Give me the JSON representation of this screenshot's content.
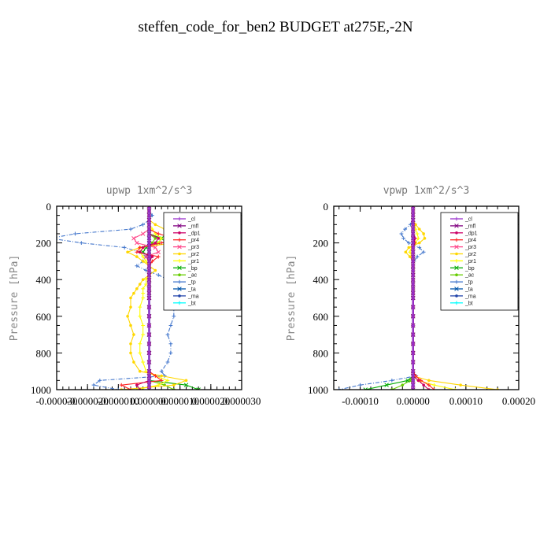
{
  "figure": {
    "title": "steffen_code_for_ben2  BUDGET at275E,-2N"
  },
  "chart_data": [
    {
      "type": "line",
      "title": "upwp   1xm^2/s^3",
      "ylabel": "Pressure [hPa]",
      "xlabel": "",
      "y_inverted": true,
      "ylim": [
        0,
        1000
      ],
      "xlim": [
        -3e-05,
        3e-05
      ],
      "xticks": [
        -3e-05,
        -2e-05,
        -1e-05,
        0,
        1e-05,
        2e-05,
        3e-05
      ],
      "xtick_labels": [
        "-0.000030",
        "-0.000020",
        "-0.000010",
        "0.000000",
        "0.000010",
        "0.000020",
        "0.000030"
      ],
      "yticks": [
        0,
        200,
        400,
        600,
        800,
        1000
      ],
      "ytick_labels": [
        "0",
        "200",
        "400",
        "600",
        "800",
        "1000"
      ],
      "legend": {
        "position": "top-right",
        "entries": [
          "_cl",
          "_mfl",
          "_dp1",
          "_pr4",
          "_pr3",
          "_pr2",
          "_pr1",
          "_bp",
          "_ac",
          "_tp",
          "_ta",
          "_ma",
          "_bt"
        ]
      },
      "grid": false,
      "y": [
        0,
        25,
        50,
        75,
        100,
        125,
        150,
        175,
        200,
        225,
        250,
        275,
        300,
        325,
        350,
        375,
        400,
        425,
        450,
        475,
        500,
        550,
        600,
        650,
        700,
        750,
        800,
        850,
        900,
        925,
        950,
        975,
        1000
      ],
      "series": [
        {
          "name": "_cl",
          "color": "#9933cc",
          "values": [
            0,
            0,
            0,
            0,
            0,
            0,
            0,
            0,
            0,
            0,
            0,
            0,
            0,
            0,
            0,
            0,
            0,
            0,
            0,
            0,
            0,
            0,
            0,
            0,
            0,
            0,
            0,
            0,
            0,
            0,
            0,
            0,
            0
          ]
        },
        {
          "name": "_mfl",
          "color": "#800080",
          "values": [
            0,
            0,
            0,
            0,
            0,
            0,
            0,
            0,
            0,
            0,
            0,
            0,
            0,
            0,
            0,
            0,
            0,
            0,
            0,
            0,
            0,
            0,
            0,
            0,
            0,
            0,
            0,
            0,
            0,
            0,
            0,
            0,
            0
          ]
        },
        {
          "name": "_dp1",
          "color": "#cc0066",
          "values": [
            0,
            0,
            0,
            0,
            0,
            0,
            0,
            3e-06,
            2e-06,
            -2e-06,
            -3e-06,
            1e-06,
            0,
            0,
            0,
            0,
            0,
            0,
            0,
            0,
            0,
            0,
            0,
            0,
            0,
            0,
            0,
            0,
            0,
            0,
            0,
            -4e-06,
            -3e-06
          ]
        },
        {
          "name": "_pr4",
          "color": "#ff2222",
          "values": [
            0,
            0,
            0,
            0,
            0,
            0,
            3e-06,
            8e-06,
            4e-06,
            -3e-06,
            -4e-06,
            3e-06,
            1e-06,
            0,
            0,
            0,
            0,
            0,
            0,
            0,
            0,
            0,
            0,
            0,
            0,
            0,
            0,
            0,
            0,
            2e-06,
            4e-06,
            -9e-06,
            -6e-06
          ]
        },
        {
          "name": "_pr3",
          "color": "#ff4488",
          "values": [
            0,
            0,
            0,
            0,
            0,
            0,
            -2e-06,
            -5e-06,
            -4e-06,
            2e-06,
            3e-06,
            -1e-06,
            0,
            0,
            0,
            0,
            0,
            0,
            0,
            0,
            0,
            0,
            0,
            0,
            0,
            0,
            0,
            0,
            0,
            0,
            0,
            0,
            0
          ]
        },
        {
          "name": "_pr2",
          "color": "#ffd700",
          "values": [
            0,
            0,
            0,
            0,
            2e-06,
            5e-06,
            8e-06,
            1.1e-05,
            8e-06,
            -3e-06,
            -7e-06,
            -4e-06,
            -2e-06,
            0,
            2e-06,
            0,
            -2e-06,
            -3e-06,
            -4e-06,
            -5e-06,
            -6e-06,
            -6e-06,
            -7e-06,
            -6e-06,
            -5e-06,
            -6e-06,
            -6e-06,
            -5e-06,
            -3e-06,
            4e-06,
            1.2e-05,
            8e-06,
            -9e-06
          ]
        },
        {
          "name": "_pr1",
          "color": "#ffff00",
          "values": [
            0,
            0,
            0,
            0,
            0,
            1e-06,
            2e-06,
            4e-06,
            3e-06,
            -2e-06,
            -3e-06,
            -2e-06,
            -1e-06,
            0,
            0,
            0,
            -1e-06,
            -1e-06,
            -2e-06,
            -2e-06,
            -2e-06,
            -3e-06,
            -3e-06,
            -2e-06,
            -2e-06,
            -3e-06,
            -3e-06,
            -2e-06,
            -1e-06,
            2e-06,
            6e-06,
            3e-06,
            -4e-06
          ]
        },
        {
          "name": "_bp",
          "color": "#00aa00",
          "values": [
            0,
            0,
            0,
            0,
            0,
            0,
            0,
            4e-06,
            3e-06,
            -1e-06,
            -2e-06,
            0,
            0,
            0,
            0,
            0,
            0,
            0,
            0,
            0,
            0,
            0,
            0,
            0,
            0,
            0,
            0,
            0,
            0,
            0,
            0,
            1.2e-05,
            1.6e-05
          ]
        },
        {
          "name": "_ac",
          "color": "#66cc00",
          "values": [
            0,
            0,
            0,
            0,
            0,
            0,
            0,
            2e-06,
            1e-06,
            0,
            0,
            0,
            0,
            0,
            0,
            0,
            0,
            0,
            0,
            0,
            0,
            0,
            0,
            0,
            0,
            0,
            0,
            0,
            0,
            0,
            0,
            5e-06,
            8e-06
          ]
        },
        {
          "name": "_tp",
          "color": "#4477cc",
          "values": [
            0,
            0,
            1e-06,
            0,
            -2e-06,
            -6e-06,
            -2.4e-05,
            -3.2e-05,
            -2.2e-05,
            -8e-06,
            -3e-06,
            -1e-06,
            -2e-06,
            -4e-06,
            -1e-06,
            3e-06,
            6e-06,
            7e-06,
            8e-06,
            8e-06,
            7e-06,
            8e-06,
            8e-06,
            7e-06,
            6e-06,
            7e-06,
            7e-06,
            6e-06,
            4e-06,
            5e-06,
            -1.6e-05,
            -1.8e-05,
            -1e-05
          ]
        },
        {
          "name": "_ta",
          "color": "#0055aa",
          "values": [
            0,
            0,
            0,
            0,
            0,
            0,
            0,
            0,
            0,
            0,
            0,
            0,
            0,
            0,
            0,
            0,
            0,
            0,
            0,
            0,
            0,
            0,
            0,
            0,
            0,
            0,
            0,
            0,
            0,
            0,
            0,
            0,
            0
          ]
        },
        {
          "name": "_ma",
          "color": "#2244aa",
          "values": [
            0,
            0,
            0,
            0,
            0,
            0,
            0,
            0,
            0,
            0,
            0,
            0,
            0,
            0,
            0,
            0,
            0,
            0,
            0,
            0,
            0,
            0,
            0,
            0,
            0,
            0,
            0,
            0,
            0,
            0,
            0,
            0,
            0
          ]
        },
        {
          "name": "_bt",
          "color": "#00ffff",
          "values": [
            0,
            0,
            0,
            0,
            0,
            0,
            0,
            0,
            0,
            0,
            0,
            0,
            0,
            0,
            0,
            0,
            0,
            0,
            0,
            0,
            0,
            0,
            0,
            0,
            0,
            0,
            0,
            0,
            0,
            0,
            0,
            0,
            0
          ]
        }
      ]
    },
    {
      "type": "line",
      "title": "vpwp   1xm^2/s^3",
      "ylabel": "Pressure [hPa]",
      "xlabel": "",
      "y_inverted": true,
      "ylim": [
        0,
        1000
      ],
      "xlim": [
        -0.00015,
        0.0002
      ],
      "xticks": [
        -0.0001,
        0,
        0.0001,
        0.0002
      ],
      "xtick_labels": [
        "-0.00010",
        "0.00000",
        "0.00010",
        "0.00020"
      ],
      "yticks": [
        0,
        200,
        400,
        600,
        800,
        1000
      ],
      "ytick_labels": [
        "0",
        "200",
        "400",
        "600",
        "800",
        "1000"
      ],
      "legend": {
        "position": "top-right",
        "entries": [
          "_cl",
          "_mfl",
          "_dp1",
          "_pr4",
          "_pr3",
          "_pr2",
          "_pr1",
          "_bp",
          "_ac",
          "_tp",
          "_ta",
          "_ma",
          "_bt"
        ]
      },
      "grid": false,
      "y": [
        0,
        25,
        50,
        75,
        100,
        125,
        150,
        175,
        200,
        225,
        250,
        275,
        300,
        325,
        350,
        375,
        400,
        425,
        450,
        475,
        500,
        550,
        600,
        650,
        700,
        750,
        800,
        850,
        900,
        925,
        950,
        975,
        1000
      ],
      "series": [
        {
          "name": "_cl",
          "color": "#9933cc",
          "values": [
            0,
            0,
            0,
            0,
            0,
            0,
            0,
            0,
            0,
            0,
            0,
            0,
            0,
            0,
            0,
            0,
            0,
            0,
            0,
            0,
            0,
            0,
            0,
            0,
            0,
            0,
            0,
            0,
            0,
            0,
            0,
            0,
            0
          ]
        },
        {
          "name": "_mfl",
          "color": "#800080",
          "values": [
            0,
            0,
            0,
            0,
            0,
            0,
            0,
            0,
            0,
            0,
            0,
            0,
            0,
            0,
            0,
            0,
            0,
            0,
            0,
            0,
            0,
            0,
            0,
            0,
            0,
            0,
            0,
            0,
            0,
            0,
            0,
            0,
            0
          ]
        },
        {
          "name": "_dp1",
          "color": "#cc0066",
          "values": [
            0,
            0,
            0,
            0,
            0,
            0,
            0,
            3e-06,
            2e-06,
            0,
            0,
            0,
            0,
            0,
            0,
            0,
            0,
            0,
            0,
            0,
            0,
            0,
            0,
            0,
            0,
            0,
            0,
            0,
            0,
            0,
            1e-05,
            2e-05,
            3e-05
          ]
        },
        {
          "name": "_pr4",
          "color": "#ff2222",
          "values": [
            0,
            0,
            0,
            0,
            0,
            0,
            0,
            4e-06,
            3e-06,
            0,
            0,
            0,
            0,
            0,
            0,
            0,
            0,
            0,
            0,
            0,
            0,
            0,
            0,
            0,
            0,
            0,
            0,
            0,
            0,
            5e-06,
            1.5e-05,
            3e-05,
            4e-05
          ]
        },
        {
          "name": "_pr3",
          "color": "#ff4488",
          "values": [
            0,
            0,
            0,
            0,
            0,
            0,
            0,
            0,
            0,
            0,
            0,
            0,
            0,
            0,
            0,
            0,
            0,
            0,
            0,
            0,
            0,
            0,
            0,
            0,
            0,
            0,
            0,
            0,
            0,
            0,
            0,
            0,
            0
          ]
        },
        {
          "name": "_pr2",
          "color": "#ffd700",
          "values": [
            0,
            0,
            0,
            0,
            5e-06,
            1.2e-05,
            2e-05,
            2.2e-05,
            1.2e-05,
            -8e-06,
            -1.4e-05,
            -6e-06,
            0,
            0,
            0,
            0,
            0,
            0,
            0,
            0,
            0,
            0,
            0,
            0,
            0,
            0,
            0,
            0,
            0,
            0,
            3e-05,
            9e-05,
            0.00016
          ]
        },
        {
          "name": "_pr1",
          "color": "#ffff00",
          "values": [
            0,
            0,
            0,
            0,
            2e-06,
            5e-06,
            8e-06,
            1e-05,
            5e-06,
            -3e-06,
            -6e-06,
            -2e-06,
            0,
            0,
            0,
            0,
            0,
            0,
            0,
            0,
            0,
            0,
            0,
            0,
            0,
            0,
            0,
            0,
            0,
            0,
            1e-05,
            4e-05,
            8e-05
          ]
        },
        {
          "name": "_bp",
          "color": "#00aa00",
          "values": [
            0,
            0,
            0,
            0,
            0,
            0,
            0,
            0,
            0,
            0,
            0,
            0,
            0,
            0,
            0,
            0,
            0,
            0,
            0,
            0,
            0,
            0,
            0,
            0,
            0,
            0,
            0,
            0,
            0,
            0,
            -1e-05,
            -5e-05,
            -9e-05
          ]
        },
        {
          "name": "_ac",
          "color": "#66cc00",
          "values": [
            0,
            0,
            0,
            0,
            0,
            0,
            0,
            0,
            0,
            0,
            0,
            0,
            0,
            0,
            0,
            0,
            0,
            0,
            0,
            0,
            0,
            0,
            0,
            0,
            0,
            0,
            0,
            0,
            0,
            0,
            -5e-06,
            -2e-05,
            -4e-05
          ]
        },
        {
          "name": "_tp",
          "color": "#4477cc",
          "values": [
            0,
            0,
            0,
            0,
            -5e-06,
            -1.5e-05,
            -2.2e-05,
            -1.8e-05,
            -8e-06,
            1.2e-05,
            2e-05,
            8e-06,
            2e-06,
            0,
            0,
            0,
            0,
            0,
            0,
            0,
            0,
            0,
            0,
            0,
            0,
            0,
            0,
            0,
            0,
            6e-06,
            -4e-05,
            -0.0001,
            -0.00014
          ]
        },
        {
          "name": "_ta",
          "color": "#0055aa",
          "values": [
            0,
            0,
            0,
            0,
            0,
            0,
            0,
            0,
            0,
            0,
            0,
            0,
            0,
            0,
            0,
            0,
            0,
            0,
            0,
            0,
            0,
            0,
            0,
            0,
            0,
            0,
            0,
            0,
            0,
            0,
            0,
            0,
            0
          ]
        },
        {
          "name": "_ma",
          "color": "#2244aa",
          "values": [
            0,
            0,
            0,
            0,
            0,
            0,
            0,
            0,
            0,
            0,
            0,
            0,
            0,
            0,
            0,
            0,
            0,
            0,
            0,
            0,
            0,
            0,
            0,
            0,
            0,
            0,
            0,
            0,
            0,
            0,
            0,
            0,
            0
          ]
        },
        {
          "name": "_bt",
          "color": "#00ffff",
          "values": [
            0,
            0,
            0,
            0,
            0,
            0,
            0,
            0,
            0,
            0,
            0,
            0,
            0,
            0,
            0,
            0,
            0,
            0,
            0,
            0,
            0,
            0,
            0,
            0,
            0,
            0,
            0,
            0,
            0,
            0,
            0,
            0,
            0
          ]
        }
      ]
    }
  ]
}
